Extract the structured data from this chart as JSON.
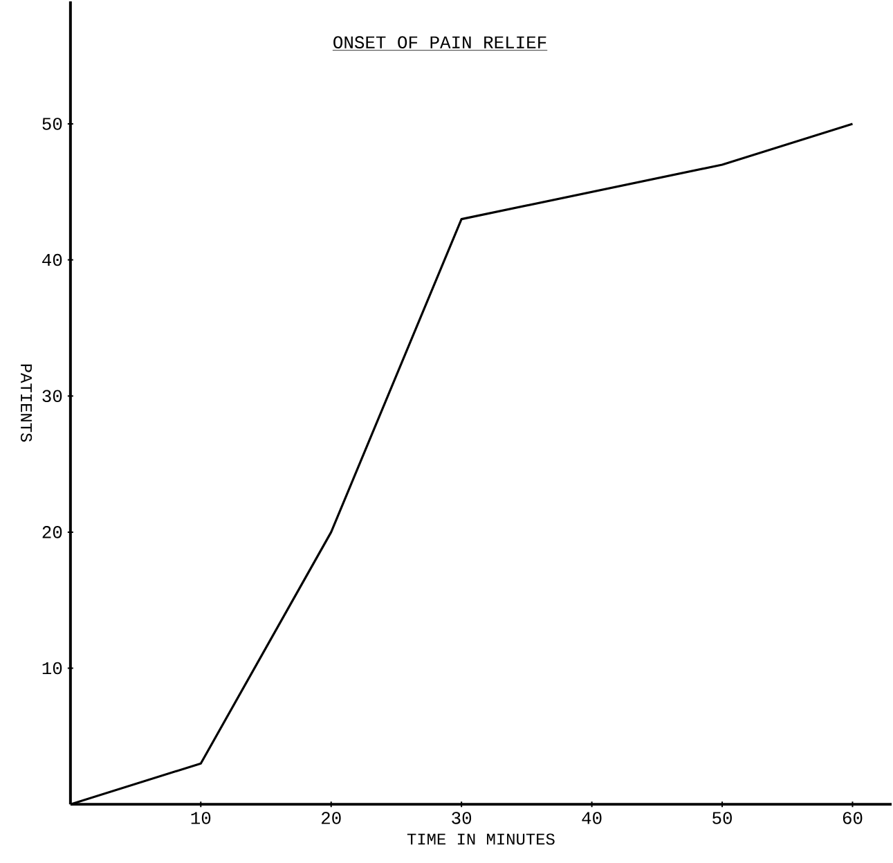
{
  "chart_data": {
    "type": "line",
    "title": "ONSET OF PAIN RELIEF",
    "xlabel": "TIME IN MINUTES",
    "ylabel": "PATIENTS",
    "x": [
      0,
      10,
      20,
      30,
      40,
      50,
      60
    ],
    "series": [
      {
        "color": "#000000",
        "values": [
          0,
          3,
          20,
          43,
          45,
          47,
          50
        ]
      }
    ],
    "xlim": [
      0,
      63
    ],
    "ylim": [
      0,
      59
    ],
    "xticks": [
      10,
      20,
      30,
      40,
      50,
      60
    ],
    "yticks": [
      10,
      20,
      30,
      40,
      50
    ],
    "grid": false
  }
}
